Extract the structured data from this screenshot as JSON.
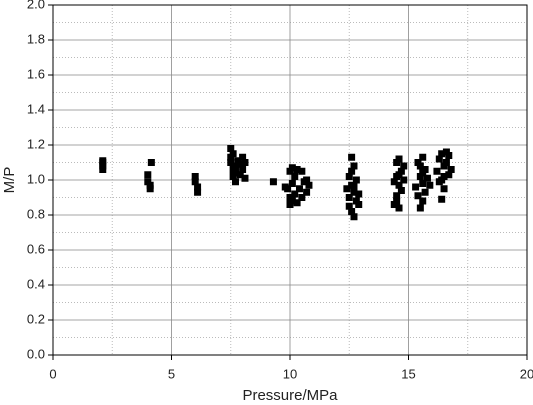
{
  "chart_data": {
    "type": "scatter",
    "x_label": "Pressure/MPa",
    "y_label": "M/P",
    "xlim": [
      0,
      20
    ],
    "xticks": [
      0,
      5,
      10,
      15,
      20
    ],
    "ylim": [
      0,
      2
    ],
    "yticks": [
      {
        "value": 0,
        "label": "0.0"
      },
      0.2,
      0.4,
      0.6,
      0.8,
      {
        "value": 1,
        "label": "1.0"
      },
      1.2,
      1.4,
      1.6,
      1.8,
      {
        "value": 2,
        "label": "2.0"
      }
    ],
    "grid": true,
    "color": "#000000",
    "x": [
      2.1,
      2.1,
      2.1,
      2.1,
      4.0,
      4.0,
      4.1,
      4.1,
      4.15,
      6.0,
      6.0,
      6.1,
      6.1,
      7.5,
      7.5,
      7.5,
      7.6,
      7.6,
      7.6,
      7.7,
      7.7,
      7.7,
      7.8,
      7.9,
      7.9,
      8.0,
      8.0,
      8.1,
      8.1,
      9.3,
      9.8,
      9.9,
      10.0,
      10.0,
      10.0,
      10.1,
      10.1,
      10.1,
      10.2,
      10.2,
      10.3,
      10.3,
      10.4,
      10.5,
      10.5,
      10.6,
      10.7,
      10.7,
      10.8,
      12.4,
      12.5,
      12.5,
      12.5,
      12.6,
      12.6,
      12.6,
      12.7,
      12.7,
      12.7,
      12.8,
      12.8,
      12.9,
      12.9,
      12.6,
      12.7,
      14.4,
      14.4,
      14.5,
      14.5,
      14.5,
      14.6,
      14.6,
      14.6,
      14.7,
      14.7,
      14.8,
      14.8,
      14.6,
      14.5,
      15.3,
      15.4,
      15.4,
      15.5,
      15.5,
      15.6,
      15.6,
      15.6,
      15.7,
      15.7,
      15.8,
      15.9,
      15.5,
      15.6,
      16.2,
      16.3,
      16.3,
      16.4,
      16.4,
      16.5,
      16.5,
      16.5,
      16.6,
      16.6,
      16.7,
      16.7,
      16.8,
      16.4
    ],
    "values": [
      1.06,
      1.08,
      1.1,
      1.11,
      1.03,
      0.99,
      0.97,
      0.95,
      1.1,
      1.02,
      0.99,
      0.96,
      0.93,
      1.18,
      1.13,
      1.1,
      1.15,
      1.06,
      1.02,
      1.08,
      1.04,
      0.99,
      1.11,
      1.09,
      1.03,
      1.13,
      1.06,
      1.1,
      1.01,
      0.99,
      0.96,
      0.95,
      1.05,
      0.9,
      0.86,
      1.07,
      0.98,
      0.88,
      1.02,
      0.92,
      1.06,
      0.87,
      0.95,
      1.05,
      0.9,
      0.99,
      1.0,
      0.93,
      0.97,
      0.95,
      1.02,
      0.9,
      0.85,
      1.13,
      0.97,
      0.82,
      1.08,
      0.93,
      0.79,
      1.0,
      0.88,
      0.92,
      0.86,
      1.05,
      0.96,
      0.99,
      0.86,
      1.1,
      1.02,
      0.91,
      1.12,
      0.97,
      0.84,
      1.05,
      0.94,
      1.08,
      1.0,
      1.03,
      0.88,
      0.96,
      1.1,
      0.91,
      1.02,
      0.84,
      1.13,
      0.98,
      0.88,
      1.06,
      0.93,
      1.01,
      0.97,
      1.08,
      1.04,
      1.05,
      1.12,
      0.99,
      1.15,
      0.89,
      1.08,
      1.02,
      0.95,
      1.16,
      1.1,
      1.14,
      1.03,
      1.06,
      1.0
    ]
  }
}
